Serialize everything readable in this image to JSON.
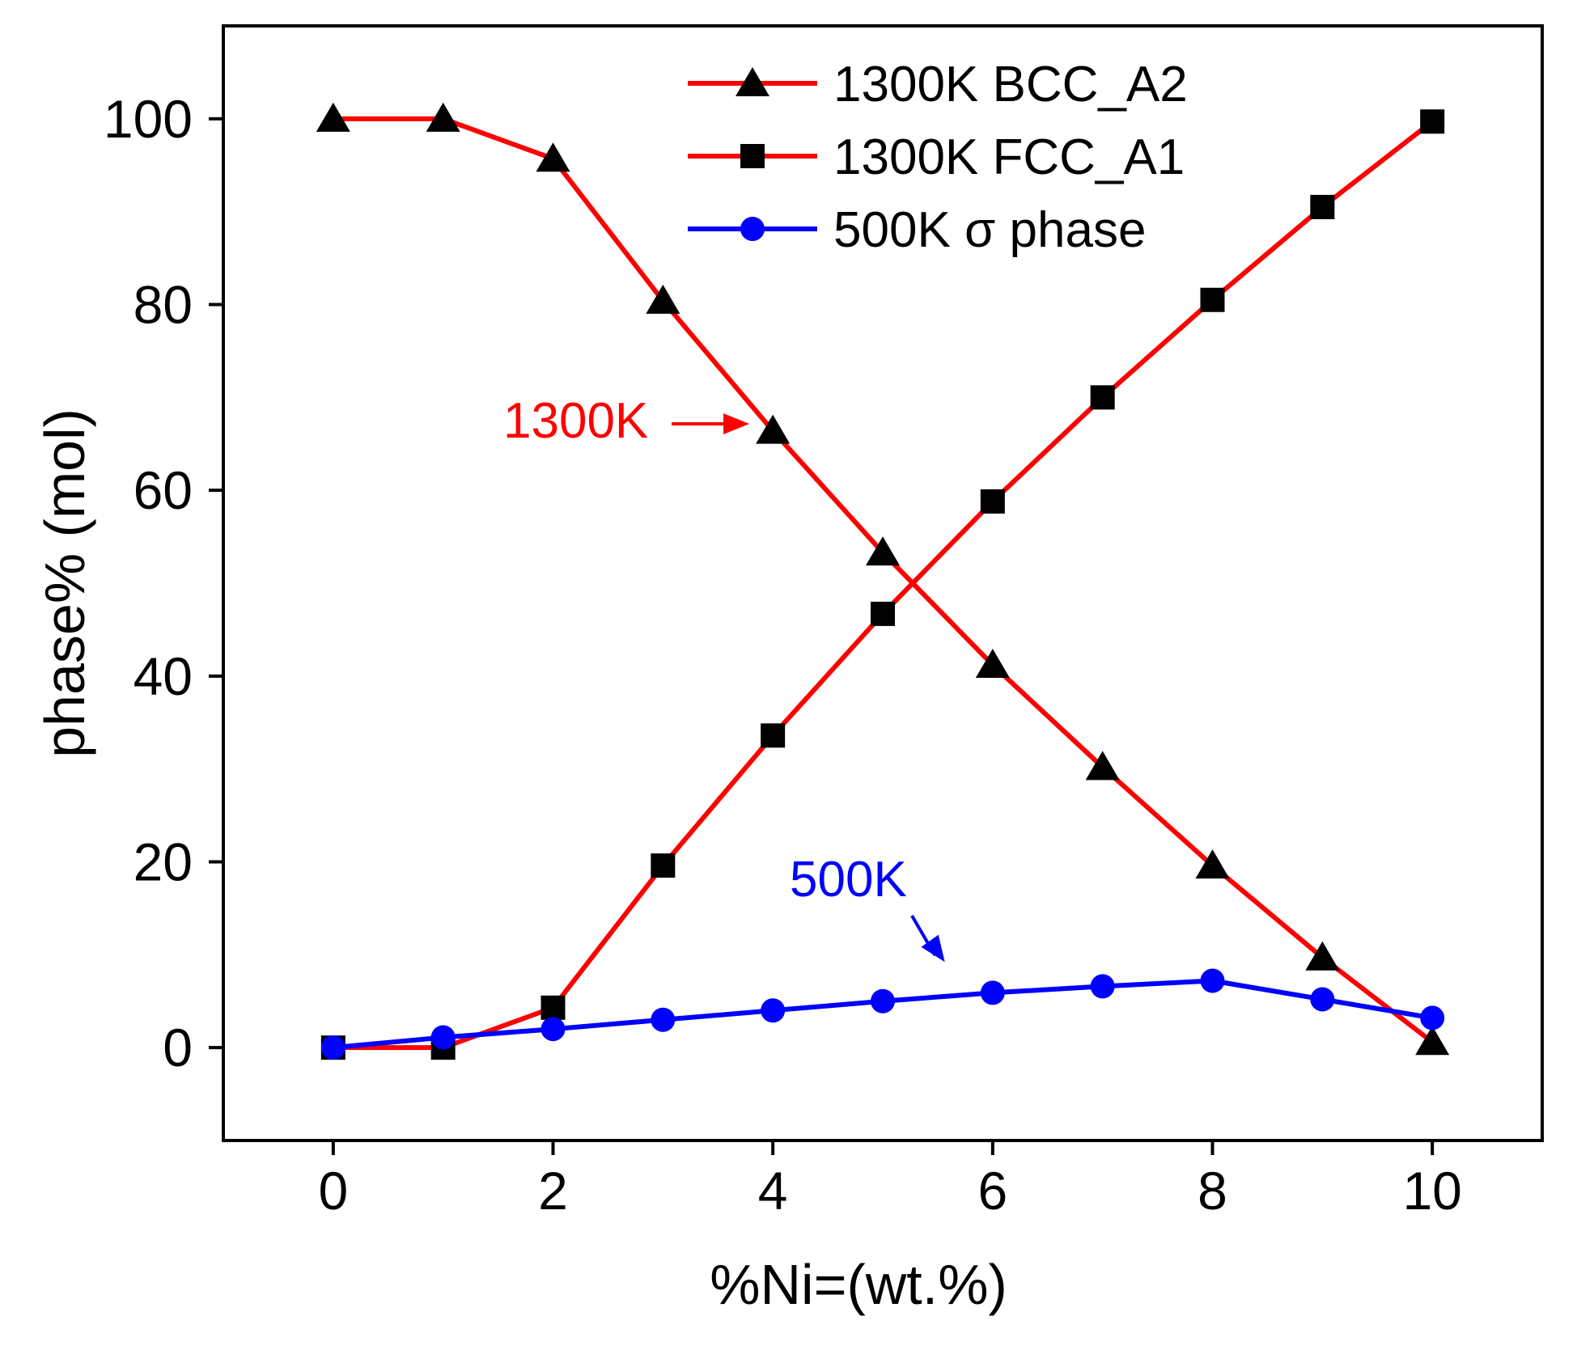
{
  "chart_data": {
    "type": "line",
    "title": "",
    "xlabel": "%Ni=(wt.%)",
    "ylabel": "phase% (mol)",
    "xlim": [
      -1,
      11
    ],
    "ylim": [
      -10,
      110
    ],
    "xticks": [
      0,
      2,
      4,
      6,
      8,
      10
    ],
    "yticks": [
      0,
      20,
      40,
      60,
      80,
      100
    ],
    "grid": false,
    "legend_position": "top-right",
    "x": [
      0,
      1,
      2,
      3,
      4,
      5,
      6,
      7,
      8,
      9,
      10
    ],
    "series": [
      {
        "name": "1300K BCC_A2",
        "marker": "triangle",
        "color": "#ff0000",
        "values": [
          100,
          100,
          95.7,
          80.4,
          66.4,
          53.3,
          41.2,
          30.2,
          19.6,
          9.7,
          0.6
        ]
      },
      {
        "name": "1300K FCC_A1",
        "marker": "square",
        "color": "#ff0000",
        "values": [
          0,
          0,
          4.3,
          19.6,
          33.6,
          46.7,
          58.8,
          70.0,
          80.5,
          90.5,
          99.7
        ]
      },
      {
        "name": "500K σ phase",
        "marker": "circle",
        "color": "#0000ff",
        "values": [
          0,
          1.1,
          2.0,
          3.0,
          4.0,
          5.0,
          5.9,
          6.6,
          7.2,
          5.2,
          3.2
        ]
      }
    ],
    "annotations": [
      {
        "text": "1300K",
        "color": "#ff0000",
        "target_x": 3.8,
        "target_y": 67
      },
      {
        "text": "500K",
        "color": "#0000ff",
        "target_x": 5.8,
        "target_y": 8
      }
    ]
  }
}
